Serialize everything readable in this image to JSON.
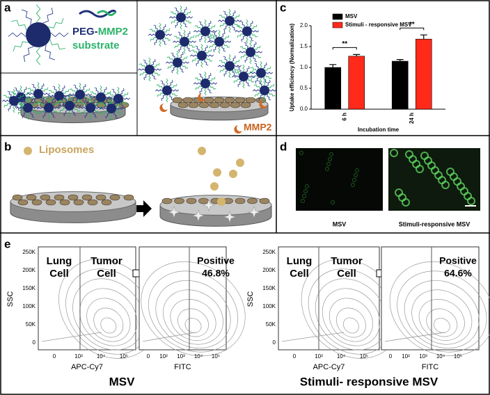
{
  "panel_labels": [
    "a",
    "b",
    "c",
    "d",
    "e"
  ],
  "panel_a": {
    "peg": "PEG-",
    "mmp2": "MMP2",
    "substrate": "substrate",
    "enzyme": "MMP2"
  },
  "panel_b": {
    "liposomes": "Liposomes"
  },
  "panel_d": {
    "labels": [
      "MSV",
      "Stimuli-responsive MSV"
    ]
  },
  "panel_e": {
    "ssc_label": "SSC",
    "apc_label": "APC-Cy7",
    "fitc_label": "FITC",
    "ssc_ticks": [
      "250K",
      "200K",
      "150K",
      "100K",
      "50K",
      "0"
    ],
    "apc_ticks": [
      "0",
      "10³",
      "10⁴",
      "10⁵"
    ],
    "fitc_ticks": [
      "0",
      "10²",
      "10³",
      "10⁴",
      "10⁵"
    ],
    "gate_lung": [
      "Lung",
      "Cell"
    ],
    "gate_tumor": [
      "Tumor",
      "Cell"
    ],
    "positive": "Positive",
    "groups": [
      {
        "name": "MSV",
        "percent": "46.8%"
      },
      {
        "name": "Stimuli- responsive MSV",
        "percent": "64.6%"
      }
    ]
  },
  "chart_data": {
    "type": "bar",
    "y_label": "Uptake efficiency (Normalization)",
    "x_label": "Incubation time",
    "categories": [
      "6 h",
      "24 h"
    ],
    "series": [
      {
        "name": "MSV",
        "color": "#000000",
        "values": [
          1.0,
          1.15
        ],
        "errors": [
          0.07,
          0.04
        ]
      },
      {
        "name": "Stimuli - responsive MSV",
        "color": "#ff2a1a",
        "values": [
          1.27,
          1.68
        ],
        "errors": [
          0.04,
          0.1
        ]
      }
    ],
    "ylim": [
      0,
      2
    ],
    "yticks": [
      {
        "value": 0,
        "label": "0.0"
      },
      {
        "value": 0.5,
        "label": "0.5"
      },
      {
        "value": 1,
        "label": "1.0"
      },
      {
        "value": 1.5,
        "label": "1.5"
      },
      {
        "value": 2,
        "label": "2.0"
      }
    ],
    "annotations": [
      "**",
      "**"
    ]
  }
}
